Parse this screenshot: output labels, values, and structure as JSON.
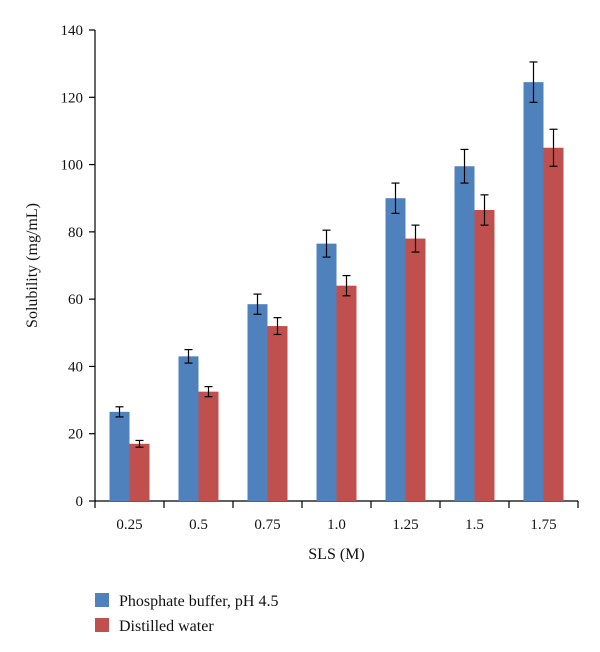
{
  "chart_data": {
    "type": "bar",
    "title": "",
    "xlabel": "SLS (M)",
    "ylabel": "Solubility (mg/mL)",
    "categories": [
      "0.25",
      "0.5",
      "0.75",
      "1.0",
      "1.25",
      "1.5",
      "1.75"
    ],
    "ylim": [
      0,
      140
    ],
    "yticks": [
      "0",
      "20",
      "40",
      "60",
      "80",
      "100",
      "120",
      "140"
    ],
    "grid": false,
    "legend_position": "bottom-left",
    "series": [
      {
        "name": "Phosphate buffer, pH 4.5",
        "color": "#4f81bd",
        "values": [
          26.5,
          43,
          58.5,
          76.5,
          90,
          99.5,
          124.5
        ],
        "errors": [
          1.5,
          2,
          3,
          4,
          4.5,
          5,
          6
        ]
      },
      {
        "name": "Distilled water",
        "color": "#c0504d",
        "values": [
          17,
          32.5,
          52,
          64,
          78,
          86.5,
          105
        ],
        "errors": [
          1,
          1.5,
          2.5,
          3,
          4,
          4.5,
          5.5
        ]
      }
    ]
  }
}
